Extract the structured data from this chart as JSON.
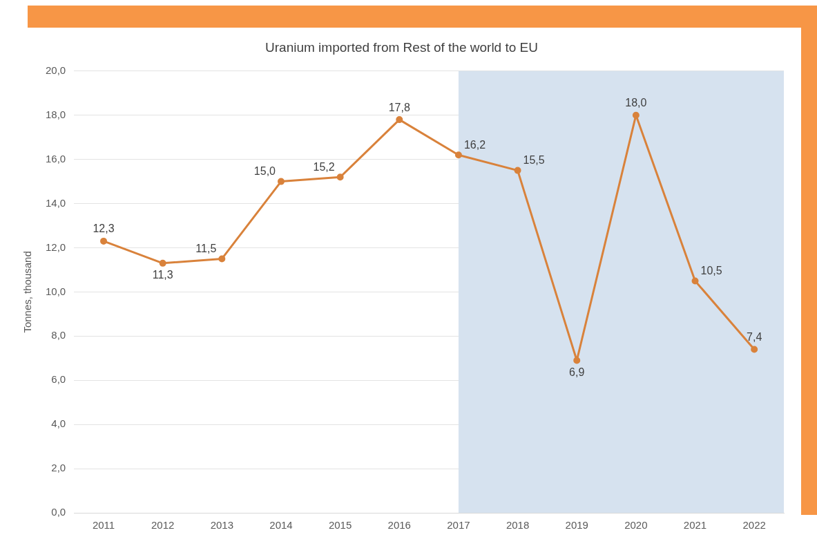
{
  "chart_data": {
    "type": "line",
    "title": "Uranium imported from Rest of the world to EU",
    "ylabel": "Tonnes, thousand",
    "categories": [
      "2011",
      "2012",
      "2013",
      "2014",
      "2015",
      "2016",
      "2017",
      "2018",
      "2019",
      "2020",
      "2021",
      "2022"
    ],
    "series": [
      {
        "color": "#d9823b",
        "values": [
          12.3,
          11.3,
          11.5,
          15.0,
          15.2,
          17.8,
          16.2,
          15.5,
          6.9,
          18.0,
          10.5,
          7.4
        ],
        "value_labels": [
          "12,3",
          "11,3",
          "11,5",
          "15,0",
          "15,2",
          "17,8",
          "16,2",
          "15,5",
          "6,9",
          "18,0",
          "10,5",
          "7,4"
        ]
      }
    ],
    "ylim": [
      0,
      20
    ],
    "yticks": [
      {
        "value": 0,
        "label": "0,0"
      },
      {
        "value": 2,
        "label": "2,0"
      },
      {
        "value": 4,
        "label": "4,0"
      },
      {
        "value": 6,
        "label": "6,0"
      },
      {
        "value": 8,
        "label": "8,0"
      },
      {
        "value": 10,
        "label": "10,0"
      },
      {
        "value": 12,
        "label": "12,0"
      },
      {
        "value": 14,
        "label": "14,0"
      },
      {
        "value": 16,
        "label": "16,0"
      },
      {
        "value": 18,
        "label": "18,0"
      },
      {
        "value": 20,
        "label": "20,0"
      }
    ],
    "bands": [
      {
        "axis": "x",
        "from": "2017",
        "to": "2022",
        "color": "#d6e2ef"
      }
    ],
    "grid": "y",
    "legend": false,
    "marker": "circle",
    "line_style": "solid"
  }
}
